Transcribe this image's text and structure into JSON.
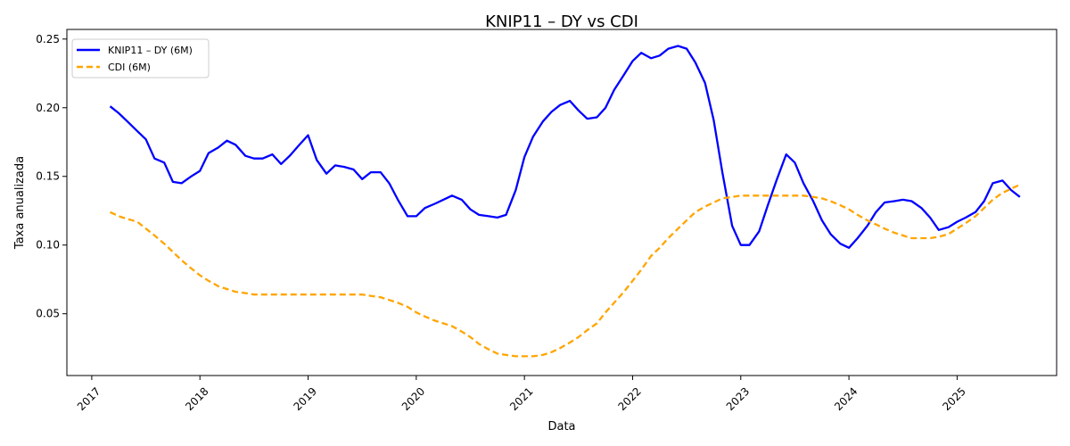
{
  "chart_data": {
    "type": "line",
    "title": "KNIP11 – DY vs CDI",
    "xlabel": "Data",
    "ylabel": "Taxa anualizada",
    "xlim": [
      2016.77,
      2025.92
    ],
    "ylim": [
      0.005,
      0.257
    ],
    "x_ticks": [
      2017,
      2018,
      2019,
      2020,
      2021,
      2022,
      2023,
      2024,
      2025
    ],
    "x_tick_labels": [
      "2017",
      "2018",
      "2019",
      "2020",
      "2021",
      "2022",
      "2023",
      "2024",
      "2025"
    ],
    "y_ticks": [
      0.05,
      0.1,
      0.15,
      0.2,
      0.25
    ],
    "y_tick_labels": [
      "0.05",
      "0.10",
      "0.15",
      "0.20",
      "0.25"
    ],
    "grid": false,
    "legend_position": "top-left",
    "series": [
      {
        "name": "KNIP11 – DY (6M)",
        "color": "#0000ff",
        "style": "solid",
        "points": [
          [
            2017.17,
            0.201
          ],
          [
            2017.25,
            0.196
          ],
          [
            2017.33,
            0.19
          ],
          [
            2017.42,
            0.183
          ],
          [
            2017.5,
            0.177
          ],
          [
            2017.58,
            0.163
          ],
          [
            2017.67,
            0.16
          ],
          [
            2017.75,
            0.146
          ],
          [
            2017.83,
            0.145
          ],
          [
            2017.92,
            0.15
          ],
          [
            2018.0,
            0.154
          ],
          [
            2018.08,
            0.167
          ],
          [
            2018.17,
            0.171
          ],
          [
            2018.25,
            0.176
          ],
          [
            2018.33,
            0.173
          ],
          [
            2018.42,
            0.165
          ],
          [
            2018.5,
            0.163
          ],
          [
            2018.58,
            0.163
          ],
          [
            2018.67,
            0.166
          ],
          [
            2018.75,
            0.159
          ],
          [
            2018.83,
            0.165
          ],
          [
            2018.92,
            0.173
          ],
          [
            2019.0,
            0.18
          ],
          [
            2019.08,
            0.162
          ],
          [
            2019.17,
            0.152
          ],
          [
            2019.25,
            0.158
          ],
          [
            2019.33,
            0.157
          ],
          [
            2019.42,
            0.155
          ],
          [
            2019.5,
            0.148
          ],
          [
            2019.58,
            0.153
          ],
          [
            2019.67,
            0.153
          ],
          [
            2019.75,
            0.145
          ],
          [
            2019.83,
            0.133
          ],
          [
            2019.92,
            0.121
          ],
          [
            2020.0,
            0.121
          ],
          [
            2020.08,
            0.127
          ],
          [
            2020.17,
            0.13
          ],
          [
            2020.25,
            0.133
          ],
          [
            2020.33,
            0.136
          ],
          [
            2020.42,
            0.133
          ],
          [
            2020.5,
            0.126
          ],
          [
            2020.58,
            0.122
          ],
          [
            2020.67,
            0.121
          ],
          [
            2020.75,
            0.12
          ],
          [
            2020.83,
            0.122
          ],
          [
            2020.92,
            0.14
          ],
          [
            2021.0,
            0.164
          ],
          [
            2021.08,
            0.179
          ],
          [
            2021.17,
            0.19
          ],
          [
            2021.25,
            0.197
          ],
          [
            2021.33,
            0.202
          ],
          [
            2021.42,
            0.205
          ],
          [
            2021.5,
            0.198
          ],
          [
            2021.58,
            0.192
          ],
          [
            2021.67,
            0.193
          ],
          [
            2021.75,
            0.2
          ],
          [
            2021.83,
            0.213
          ],
          [
            2021.92,
            0.224
          ],
          [
            2022.0,
            0.234
          ],
          [
            2022.08,
            0.24
          ],
          [
            2022.17,
            0.236
          ],
          [
            2022.25,
            0.238
          ],
          [
            2022.33,
            0.243
          ],
          [
            2022.42,
            0.245
          ],
          [
            2022.5,
            0.243
          ],
          [
            2022.58,
            0.233
          ],
          [
            2022.67,
            0.218
          ],
          [
            2022.75,
            0.191
          ],
          [
            2022.83,
            0.153
          ],
          [
            2022.92,
            0.114
          ],
          [
            2023.0,
            0.1
          ],
          [
            2023.08,
            0.1
          ],
          [
            2023.17,
            0.11
          ],
          [
            2023.25,
            0.129
          ],
          [
            2023.33,
            0.147
          ],
          [
            2023.42,
            0.166
          ],
          [
            2023.5,
            0.16
          ],
          [
            2023.58,
            0.145
          ],
          [
            2023.67,
            0.132
          ],
          [
            2023.75,
            0.118
          ],
          [
            2023.83,
            0.108
          ],
          [
            2023.92,
            0.101
          ],
          [
            2024.0,
            0.098
          ],
          [
            2024.08,
            0.105
          ],
          [
            2024.17,
            0.114
          ],
          [
            2024.25,
            0.124
          ],
          [
            2024.33,
            0.131
          ],
          [
            2024.42,
            0.132
          ],
          [
            2024.5,
            0.133
          ],
          [
            2024.58,
            0.132
          ],
          [
            2024.67,
            0.127
          ],
          [
            2024.75,
            0.12
          ],
          [
            2024.83,
            0.111
          ],
          [
            2024.92,
            0.113
          ],
          [
            2025.0,
            0.117
          ],
          [
            2025.08,
            0.12
          ],
          [
            2025.17,
            0.124
          ],
          [
            2025.25,
            0.132
          ],
          [
            2025.33,
            0.145
          ],
          [
            2025.42,
            0.147
          ],
          [
            2025.5,
            0.14
          ],
          [
            2025.58,
            0.135
          ]
        ]
      },
      {
        "name": "CDI (6M)",
        "color": "#ffa500",
        "style": "dashed",
        "points": [
          [
            2017.17,
            0.124
          ],
          [
            2017.25,
            0.121
          ],
          [
            2017.33,
            0.119
          ],
          [
            2017.42,
            0.117
          ],
          [
            2017.5,
            0.112
          ],
          [
            2017.58,
            0.107
          ],
          [
            2017.67,
            0.101
          ],
          [
            2017.75,
            0.095
          ],
          [
            2017.83,
            0.089
          ],
          [
            2017.92,
            0.083
          ],
          [
            2018.0,
            0.078
          ],
          [
            2018.08,
            0.074
          ],
          [
            2018.17,
            0.07
          ],
          [
            2018.25,
            0.068
          ],
          [
            2018.33,
            0.066
          ],
          [
            2018.42,
            0.065
          ],
          [
            2018.5,
            0.064
          ],
          [
            2018.58,
            0.064
          ],
          [
            2018.67,
            0.064
          ],
          [
            2018.75,
            0.064
          ],
          [
            2018.83,
            0.064
          ],
          [
            2018.92,
            0.064
          ],
          [
            2019.0,
            0.064
          ],
          [
            2019.25,
            0.064
          ],
          [
            2019.5,
            0.064
          ],
          [
            2019.58,
            0.063
          ],
          [
            2019.67,
            0.062
          ],
          [
            2019.75,
            0.06
          ],
          [
            2019.83,
            0.058
          ],
          [
            2019.92,
            0.055
          ],
          [
            2020.0,
            0.051
          ],
          [
            2020.08,
            0.048
          ],
          [
            2020.17,
            0.045
          ],
          [
            2020.25,
            0.043
          ],
          [
            2020.33,
            0.041
          ],
          [
            2020.42,
            0.037
          ],
          [
            2020.5,
            0.033
          ],
          [
            2020.58,
            0.028
          ],
          [
            2020.67,
            0.024
          ],
          [
            2020.75,
            0.021
          ],
          [
            2020.83,
            0.02
          ],
          [
            2020.92,
            0.019
          ],
          [
            2021.0,
            0.019
          ],
          [
            2021.08,
            0.019
          ],
          [
            2021.17,
            0.02
          ],
          [
            2021.25,
            0.022
          ],
          [
            2021.33,
            0.025
          ],
          [
            2021.42,
            0.029
          ],
          [
            2021.5,
            0.033
          ],
          [
            2021.58,
            0.038
          ],
          [
            2021.67,
            0.043
          ],
          [
            2021.75,
            0.051
          ],
          [
            2021.83,
            0.058
          ],
          [
            2021.92,
            0.066
          ],
          [
            2022.0,
            0.074
          ],
          [
            2022.08,
            0.082
          ],
          [
            2022.17,
            0.092
          ],
          [
            2022.25,
            0.098
          ],
          [
            2022.33,
            0.105
          ],
          [
            2022.42,
            0.112
          ],
          [
            2022.5,
            0.118
          ],
          [
            2022.58,
            0.124
          ],
          [
            2022.67,
            0.128
          ],
          [
            2022.75,
            0.131
          ],
          [
            2022.83,
            0.134
          ],
          [
            2022.92,
            0.135
          ],
          [
            2023.0,
            0.136
          ],
          [
            2023.08,
            0.136
          ],
          [
            2023.17,
            0.136
          ],
          [
            2023.42,
            0.136
          ],
          [
            2023.58,
            0.136
          ],
          [
            2023.67,
            0.135
          ],
          [
            2023.75,
            0.134
          ],
          [
            2023.83,
            0.132
          ],
          [
            2023.92,
            0.129
          ],
          [
            2024.0,
            0.126
          ],
          [
            2024.08,
            0.122
          ],
          [
            2024.17,
            0.118
          ],
          [
            2024.25,
            0.115
          ],
          [
            2024.33,
            0.112
          ],
          [
            2024.42,
            0.109
          ],
          [
            2024.5,
            0.107
          ],
          [
            2024.58,
            0.105
          ],
          [
            2024.67,
            0.105
          ],
          [
            2024.75,
            0.105
          ],
          [
            2024.83,
            0.106
          ],
          [
            2024.92,
            0.108
          ],
          [
            2025.0,
            0.112
          ],
          [
            2025.08,
            0.116
          ],
          [
            2025.17,
            0.121
          ],
          [
            2025.25,
            0.127
          ],
          [
            2025.33,
            0.133
          ],
          [
            2025.42,
            0.138
          ],
          [
            2025.5,
            0.141
          ],
          [
            2025.58,
            0.144
          ]
        ]
      }
    ]
  }
}
